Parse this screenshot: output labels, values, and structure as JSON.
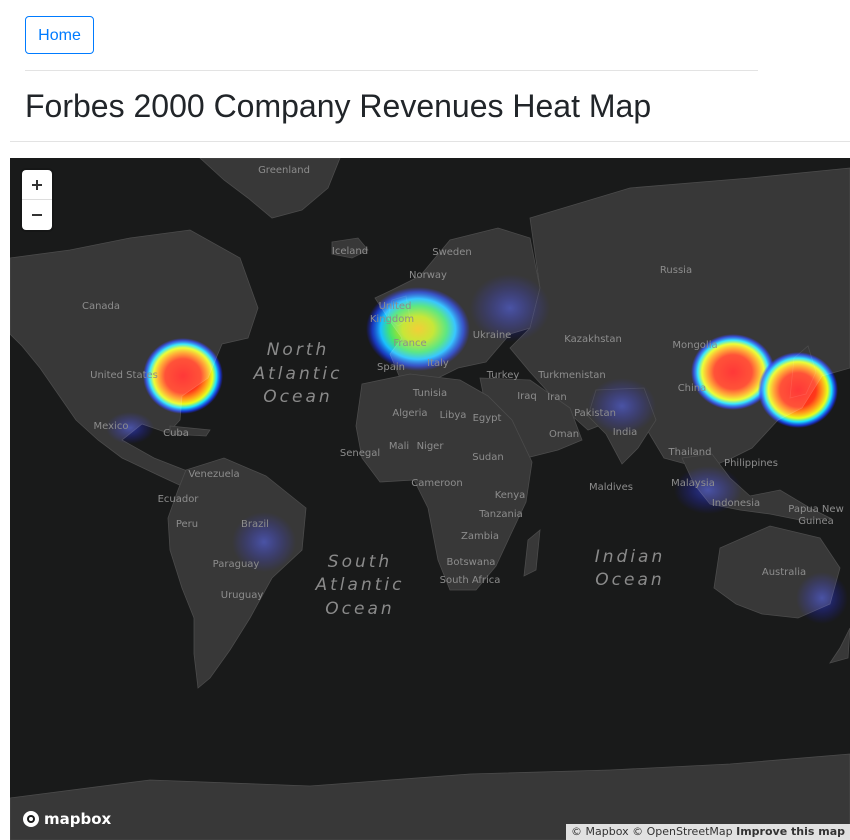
{
  "nav": {
    "home_label": "Home"
  },
  "page": {
    "title": "Forbes 2000 Company Revenues Heat Map"
  },
  "map": {
    "land_color": "#383838",
    "ocean_color": "#191a1a",
    "zoom_in_icon": "plus-icon",
    "zoom_out_icon": "minus-icon",
    "country_labels": [
      {
        "name": "Greenland"
      },
      {
        "name": "Iceland"
      },
      {
        "name": "Sweden"
      },
      {
        "name": "Norway"
      },
      {
        "name": "Russia"
      },
      {
        "name": "Canada"
      },
      {
        "name": "United"
      },
      {
        "name": "Kingdom"
      },
      {
        "name": "Ukraine"
      },
      {
        "name": "Kazakhstan"
      },
      {
        "name": "Mongolia"
      },
      {
        "name": "United States"
      },
      {
        "name": "France"
      },
      {
        "name": "Spain"
      },
      {
        "name": "Italy"
      },
      {
        "name": "Turkey"
      },
      {
        "name": "Turkmenistan"
      },
      {
        "name": "China"
      },
      {
        "name": "Tunisia"
      },
      {
        "name": "Iraq"
      },
      {
        "name": "Iran"
      },
      {
        "name": "Mexico"
      },
      {
        "name": "Cuba"
      },
      {
        "name": "Algeria"
      },
      {
        "name": "Libya"
      },
      {
        "name": "Egypt"
      },
      {
        "name": "Pakistan"
      },
      {
        "name": "Oman"
      },
      {
        "name": "India"
      },
      {
        "name": "Mali"
      },
      {
        "name": "Niger"
      },
      {
        "name": "Senegal"
      },
      {
        "name": "Thailand"
      },
      {
        "name": "Philippines"
      },
      {
        "name": "Venezuela"
      },
      {
        "name": "Sudan"
      },
      {
        "name": "Cameroon"
      },
      {
        "name": "Kenya"
      },
      {
        "name": "Maldives"
      },
      {
        "name": "Malaysia"
      },
      {
        "name": "Ecuador"
      },
      {
        "name": "Indonesia"
      },
      {
        "name": "Tanzania"
      },
      {
        "name": "Peru"
      },
      {
        "name": "Brazil"
      },
      {
        "name": "Papua New"
      },
      {
        "name": "Guinea"
      },
      {
        "name": "Zambia"
      },
      {
        "name": "Paraguay"
      },
      {
        "name": "Botswana"
      },
      {
        "name": "South Africa"
      },
      {
        "name": "Uruguay"
      },
      {
        "name": "Australia"
      }
    ],
    "ocean_labels": [
      {
        "lines": [
          "North",
          "Atlantic",
          "Ocean"
        ]
      },
      {
        "lines": [
          "South",
          "Atlantic",
          "Ocean"
        ]
      },
      {
        "lines": [
          "Indian",
          "Ocean"
        ]
      }
    ],
    "heat_colors": [
      "#ff0000",
      "#ff7a00",
      "#ffd400",
      "#00ff4d",
      "#00a8ff",
      "#0000ff"
    ],
    "hotspots": [
      {
        "region": "United States",
        "intensity": 1.0
      },
      {
        "region": "Western Europe",
        "intensity": 0.75
      },
      {
        "region": "China",
        "intensity": 1.0
      },
      {
        "region": "Japan",
        "intensity": 0.95
      },
      {
        "region": "India",
        "intensity": 0.2
      },
      {
        "region": "Brazil",
        "intensity": 0.15
      },
      {
        "region": "Australia",
        "intensity": 0.12
      },
      {
        "region": "Indonesia",
        "intensity": 0.15
      },
      {
        "region": "Russia",
        "intensity": 0.12
      }
    ],
    "logo_text": "mapbox",
    "attribution": {
      "mapbox": "© Mapbox",
      "osm": "© OpenStreetMap",
      "improve": "Improve this map"
    }
  }
}
